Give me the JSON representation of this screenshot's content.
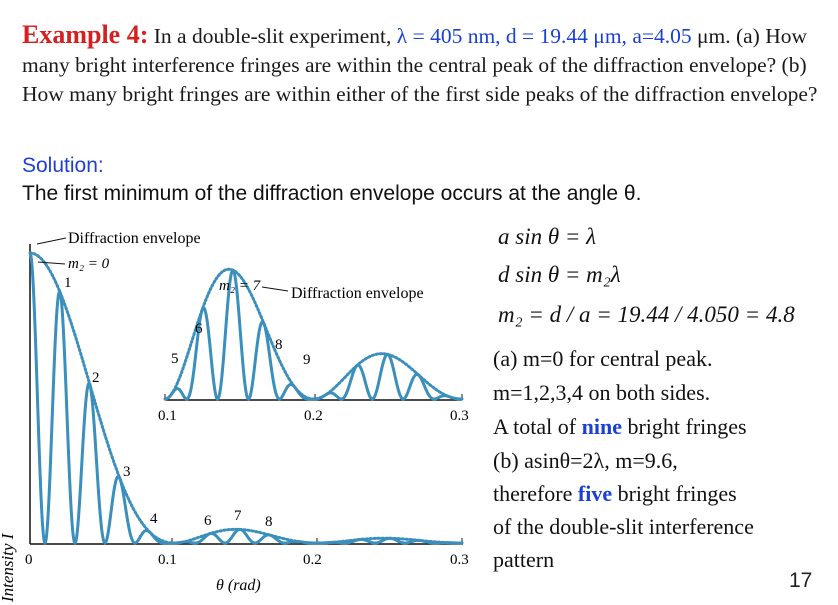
{
  "problem": {
    "title": "Example 4:",
    "lead": "In a double-slit experiment,",
    "lambda_eq": "λ = 405 nm,",
    "d_eq": "d = 19.44 μm,",
    "a_eq": "a=4.05",
    "rest": "μm. (a) How many bright interference fringes are within the central peak of the diffraction envelope? (b) How many bright fringes are within either of the first side peaks of the diffraction envelope?"
  },
  "solution": {
    "label": "Solution:",
    "intro": "The first minimum of the diffraction envelope occurs at the angle θ."
  },
  "equations": {
    "eq1": "a sin θ = λ",
    "eq2": "d sin θ = m₂λ",
    "eq3": "m₂ = d / a = 19.44 / 4.050 = 4.8"
  },
  "answers": {
    "line1": "(a) m=0  for central peak.",
    "line2": "m=1,2,3,4 on both sides.",
    "line3_pre": "A total of ",
    "line3_hl": "nine",
    "line3_post": " bright fringes",
    "line4": "(b) asinθ=2λ, m=9.6,",
    "line5_pre": "therefore ",
    "line5_hl": "five",
    "line5_post": " bright fringes",
    "line6": "of the double-slit interference",
    "line7": "pattern"
  },
  "figure": {
    "y_axis_label": "Intensity I",
    "x_axis_label": "θ (rad)",
    "main_ticks": [
      "0",
      "0.1",
      "0.2",
      "0.3"
    ],
    "inset_ticks": [
      "0.1",
      "0.2",
      "0.3"
    ],
    "annotations": {
      "diffraction_envelope_main": "Diffraction envelope",
      "m2_zero": "m₂ = 0",
      "m2_seven": "m₂ = 7",
      "diffraction_envelope_inset": "Diffraction envelope"
    },
    "main_fringe_labels": [
      "1",
      "2",
      "3",
      "4",
      "6",
      "7",
      "8"
    ],
    "inset_fringe_labels": [
      "5",
      "6",
      "8",
      "9"
    ],
    "colors": {
      "fringes": "#3b8fbd",
      "envelope": "#3b8fbd",
      "axis": "#111111"
    }
  },
  "page_number": "17"
}
